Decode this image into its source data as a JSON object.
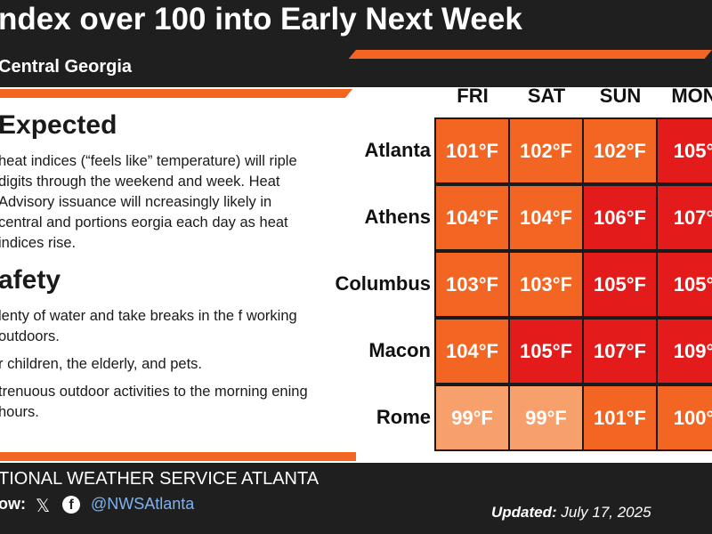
{
  "header": {
    "title": "ndex over 100 into Early Next Week",
    "subtitle": "Central Georgia"
  },
  "expected": {
    "heading": "Expected",
    "paragraph": "heat indices (“feels like” temperature) will riple digits through the weekend and week. Heat Advisory issuance will ncreasingly likely in central and portions eorgia each day as heat indices rise."
  },
  "safety": {
    "heading": "afety",
    "items": [
      "lenty of water and take breaks in the f working outdoors.",
      "r children, the elderly, and pets.",
      "trenuous outdoor activities to the morning ening hours."
    ]
  },
  "table": {
    "days": [
      "FRI",
      "SAT",
      "SUN",
      "MON"
    ],
    "rows": [
      {
        "city": "Atlanta",
        "values": [
          "101°F",
          "102°F",
          "102°F",
          "105°"
        ]
      },
      {
        "city": "Athens",
        "values": [
          "104°F",
          "104°F",
          "106°F",
          "107°"
        ]
      },
      {
        "city": "Columbus",
        "values": [
          "103°F",
          "103°F",
          "105°F",
          "105°"
        ]
      },
      {
        "city": "Macon",
        "values": [
          "104°F",
          "105°F",
          "107°F",
          "109°"
        ]
      },
      {
        "city": "Rome",
        "values": [
          "99°F",
          "99°F",
          "101°F",
          "100°"
        ]
      }
    ],
    "colors": [
      [
        "#f26522",
        "#f26522",
        "#f26522",
        "#e31b1b"
      ],
      [
        "#f26522",
        "#f26522",
        "#e31b1b",
        "#e31b1b"
      ],
      [
        "#f26522",
        "#f26522",
        "#e31b1b",
        "#e31b1b"
      ],
      [
        "#f26522",
        "#e31b1b",
        "#e31b1b",
        "#e31b1b"
      ],
      [
        "#f7a06b",
        "#f7a06b",
        "#f26522",
        "#f26522"
      ]
    ]
  },
  "footer": {
    "org": "TIONAL WEATHER SERVICE ATLANTA",
    "follow": "ow:",
    "x_icon": "x-logo-icon",
    "fb_icon": "facebook-icon",
    "handle": "@NWSAtlanta",
    "updated_label": "Updated:",
    "updated_date": "July 17, 2025"
  },
  "colors": {
    "accent": "#f26522",
    "danger": "#e31b1b",
    "light": "#f7a06b",
    "dark": "#1f1f1f"
  }
}
